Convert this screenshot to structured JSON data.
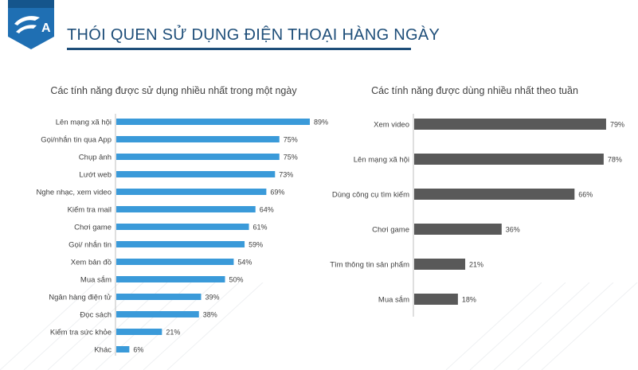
{
  "header": {
    "title": "THÓI QUEN SỬ DỤNG ĐIỆN THOẠI HÀNG NGÀY",
    "logo_letter": "A"
  },
  "colors": {
    "left_bar": "#3a9ad9",
    "right_bar": "#595959",
    "title": "#1e4e79",
    "text": "#404040"
  },
  "chart_data": [
    {
      "type": "bar",
      "orientation": "horizontal",
      "title": "Các tính năng được sử dụng nhiều nhất trong một ngày",
      "categories": [
        "Lên mạng xã hội",
        "Gọi/nhắn tin qua App",
        "Chụp ảnh",
        "Lướt web",
        "Nghe nhạc, xem video",
        "Kiểm tra mail",
        "Chơi game",
        "Gọi/ nhắn tin",
        "Xem bản đồ",
        "Mua sắm",
        "Ngân hàng điện tử",
        "Đọc sách",
        "Kiểm tra sức khỏe",
        "Khác"
      ],
      "values": [
        89,
        75,
        75,
        73,
        69,
        64,
        61,
        59,
        54,
        50,
        39,
        38,
        21,
        6
      ],
      "labels": [
        "89%",
        "75%",
        "75%",
        "73%",
        "69%",
        "64%",
        "61%",
        "59%",
        "54%",
        "50%",
        "39%",
        "38%",
        "21%",
        "6%"
      ],
      "xlim": [
        0,
        100
      ],
      "grid": false
    },
    {
      "type": "bar",
      "orientation": "horizontal",
      "title": "Các tính năng được dùng nhiều nhất theo tuần",
      "categories": [
        "Xem video",
        "Lên mạng xã hội",
        "Dùng công cụ tìm kiếm",
        "Chơi game",
        "Tìm thông tin sản phẩm",
        "Mua sắm"
      ],
      "values": [
        79,
        78,
        66,
        36,
        21,
        18
      ],
      "labels": [
        "79%",
        "78%",
        "66%",
        "36%",
        "21%",
        "18%"
      ],
      "xlim": [
        0,
        100
      ],
      "grid": false
    }
  ]
}
